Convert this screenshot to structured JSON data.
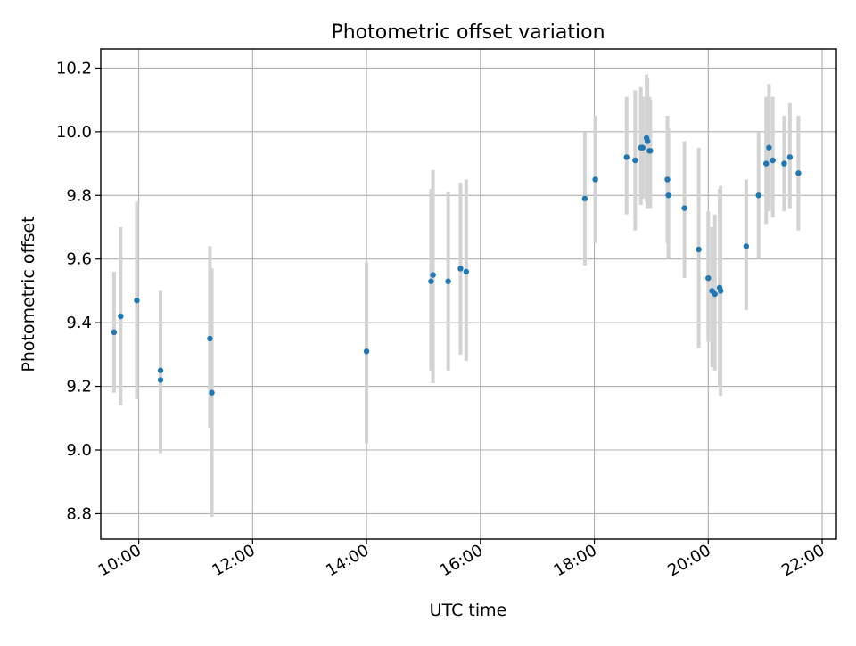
{
  "chart_data": {
    "type": "scatter",
    "title": "Photometric offset variation",
    "xlabel": "UTC time",
    "ylabel": "Photometric offset",
    "xlim": [
      "09:20",
      "22:15"
    ],
    "ylim": [
      8.72,
      10.26
    ],
    "grid": true,
    "legend": "none",
    "x_ticks": [
      "10:00",
      "12:00",
      "14:00",
      "16:00",
      "18:00",
      "20:00",
      "22:00"
    ],
    "y_ticks": [
      "8.8",
      "9.0",
      "9.2",
      "9.4",
      "9.6",
      "9.8",
      "10.0",
      "10.2"
    ],
    "marker_color": "#1f77b4",
    "errorbar_color": "#d3d3d3",
    "points": [
      {
        "time": "09:34",
        "value": 9.37,
        "low": 9.18,
        "high": 9.56
      },
      {
        "time": "09:41",
        "value": 9.42,
        "low": 9.14,
        "high": 9.7
      },
      {
        "time": "09:58",
        "value": 9.47,
        "low": 9.16,
        "high": 9.78
      },
      {
        "time": "10:23",
        "value": 9.25,
        "low": 9.0,
        "high": 9.5
      },
      {
        "time": "10:23",
        "value": 9.22,
        "low": 8.99,
        "high": 9.44
      },
      {
        "time": "11:15",
        "value": 9.35,
        "low": 9.07,
        "high": 9.64
      },
      {
        "time": "11:17",
        "value": 9.18,
        "low": 8.79,
        "high": 9.57
      },
      {
        "time": "14:00",
        "value": 9.31,
        "low": 9.02,
        "high": 9.59
      },
      {
        "time": "15:08",
        "value": 9.53,
        "low": 9.25,
        "high": 9.82
      },
      {
        "time": "15:10",
        "value": 9.55,
        "low": 9.21,
        "high": 9.88
      },
      {
        "time": "15:26",
        "value": 9.53,
        "low": 9.25,
        "high": 9.81
      },
      {
        "time": "15:39",
        "value": 9.57,
        "low": 9.3,
        "high": 9.84
      },
      {
        "time": "15:45",
        "value": 9.56,
        "low": 9.28,
        "high": 9.85
      },
      {
        "time": "17:50",
        "value": 9.79,
        "low": 9.58,
        "high": 10.0
      },
      {
        "time": "18:01",
        "value": 9.85,
        "low": 9.65,
        "high": 10.05
      },
      {
        "time": "18:34",
        "value": 9.92,
        "low": 9.74,
        "high": 10.11
      },
      {
        "time": "18:43",
        "value": 9.91,
        "low": 9.69,
        "high": 10.13
      },
      {
        "time": "18:49",
        "value": 9.95,
        "low": 9.77,
        "high": 10.14
      },
      {
        "time": "18:51",
        "value": 9.95,
        "low": 9.79,
        "high": 10.11
      },
      {
        "time": "18:55",
        "value": 9.98,
        "low": 9.78,
        "high": 10.18
      },
      {
        "time": "18:56",
        "value": 9.97,
        "low": 9.76,
        "high": 10.17
      },
      {
        "time": "18:58",
        "value": 9.94,
        "low": 9.77,
        "high": 10.11
      },
      {
        "time": "18:59",
        "value": 9.94,
        "low": 9.76,
        "high": 10.1
      },
      {
        "time": "19:17",
        "value": 9.85,
        "low": 9.65,
        "high": 10.05
      },
      {
        "time": "19:18",
        "value": 9.8,
        "low": 9.6,
        "high": 10.01
      },
      {
        "time": "19:35",
        "value": 9.76,
        "low": 9.54,
        "high": 9.97
      },
      {
        "time": "19:50",
        "value": 9.63,
        "low": 9.32,
        "high": 9.95
      },
      {
        "time": "20:00",
        "value": 9.54,
        "low": 9.34,
        "high": 9.75
      },
      {
        "time": "20:04",
        "value": 9.5,
        "low": 9.26,
        "high": 9.7
      },
      {
        "time": "20:07",
        "value": 9.49,
        "low": 9.25,
        "high": 9.74
      },
      {
        "time": "20:12",
        "value": 9.51,
        "low": 9.2,
        "high": 9.82
      },
      {
        "time": "20:13",
        "value": 9.5,
        "low": 9.17,
        "high": 9.83
      },
      {
        "time": "20:40",
        "value": 9.64,
        "low": 9.44,
        "high": 9.85
      },
      {
        "time": "20:53",
        "value": 9.8,
        "low": 9.6,
        "high": 10.0
      },
      {
        "time": "21:01",
        "value": 9.9,
        "low": 9.71,
        "high": 10.11
      },
      {
        "time": "21:04",
        "value": 9.95,
        "low": 9.75,
        "high": 10.15
      },
      {
        "time": "21:08",
        "value": 9.91,
        "low": 9.73,
        "high": 10.11
      },
      {
        "time": "21:20",
        "value": 9.9,
        "low": 9.75,
        "high": 10.05
      },
      {
        "time": "21:26",
        "value": 9.92,
        "low": 9.76,
        "high": 10.09
      },
      {
        "time": "21:35",
        "value": 9.87,
        "low": 9.69,
        "high": 10.05
      }
    ]
  }
}
